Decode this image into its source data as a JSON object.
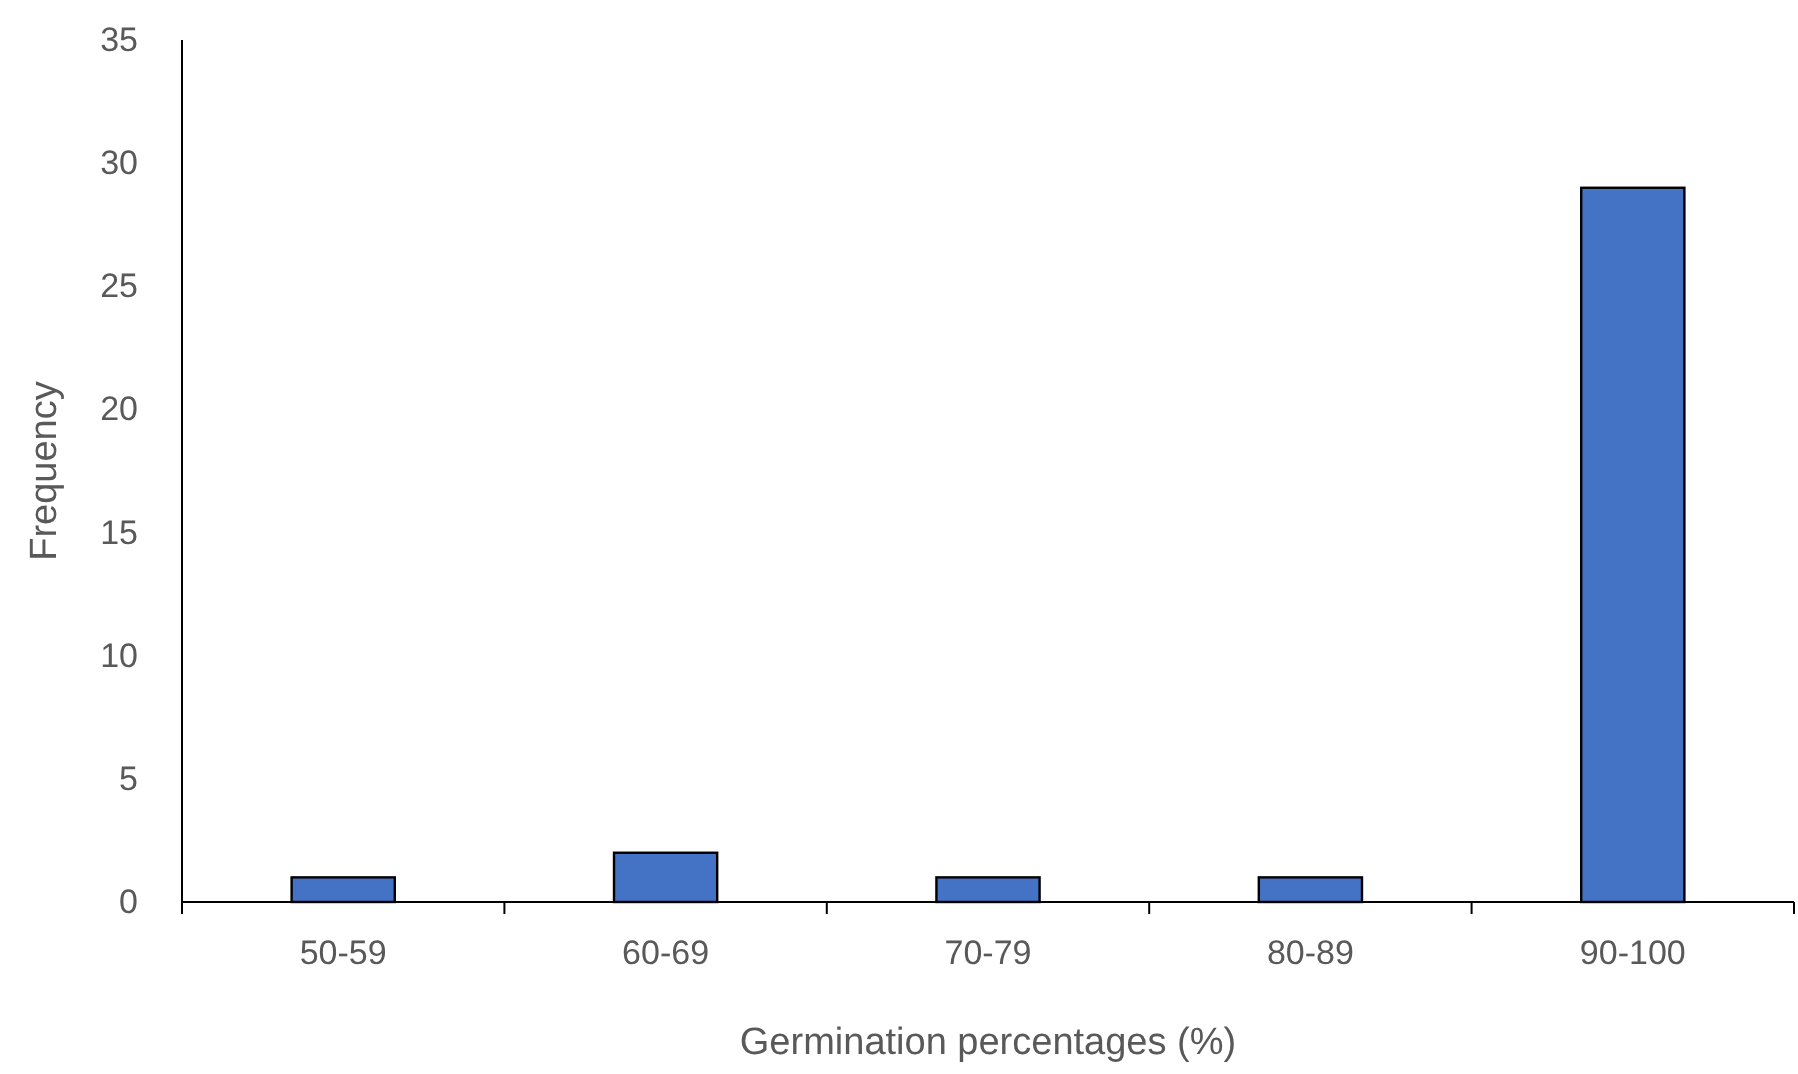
{
  "chart_data": {
    "type": "bar",
    "xlabel": "Germination percentages (%)",
    "ylabel": "Frequency",
    "categories": [
      "50-59",
      "60-69",
      "70-79",
      "80-89",
      "90-100"
    ],
    "values": [
      1,
      2,
      1,
      1,
      29
    ],
    "color": "#4472c4",
    "ylim": [
      0,
      35
    ],
    "yticks": [
      0,
      5,
      10,
      15,
      20,
      25,
      30,
      35
    ],
    "grid": false
  }
}
